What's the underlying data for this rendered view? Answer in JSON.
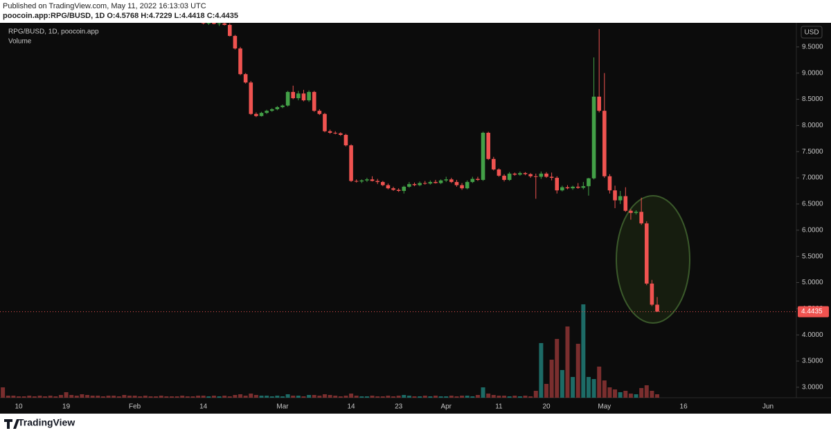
{
  "header": {
    "published": "Published on TradingView.com, May 11, 2022 16:13:03 UTC",
    "symbol": "poocoin.app:RPG/BUSD, 1D",
    "ohlc_labels": [
      "O:",
      "H:",
      "L:",
      "C:"
    ]
  },
  "footer": {
    "logo": "TradingView"
  },
  "chart_data": {
    "type": "candlestick",
    "symbol_label": "RPG/BUSD, 1D, poocoin.app",
    "volume_label": "Volume",
    "currency": "USD",
    "x": [
      "Jan 7",
      "Jan 8",
      "Jan 9",
      "Jan 10",
      "Jan 11",
      "Jan 12",
      "Jan 13",
      "Jan 14",
      "Jan 15",
      "Jan 16",
      "Jan 17",
      "Jan 18",
      "Jan 19",
      "Jan 20",
      "Jan 21",
      "Jan 22",
      "Jan 23",
      "Jan 24",
      "Jan 25",
      "Jan 26",
      "Jan 27",
      "Jan 28",
      "Jan 29",
      "Jan 30",
      "Jan 31",
      "Feb 1",
      "Feb 2",
      "Feb 3",
      "Feb 4",
      "Feb 5",
      "Feb 6",
      "Feb 7",
      "Feb 8",
      "Feb 9",
      "Feb 10",
      "Feb 11",
      "Feb 12",
      "Feb 13",
      "Feb 14",
      "Feb 15",
      "Feb 16",
      "Feb 17",
      "Feb 18",
      "Feb 19",
      "Feb 20",
      "Feb 21",
      "Feb 22",
      "Feb 23",
      "Feb 24",
      "Feb 25",
      "Feb 26",
      "Feb 27",
      "Feb 28",
      "Mar 1",
      "Mar 2",
      "Mar 3",
      "Mar 4",
      "Mar 5",
      "Mar 6",
      "Mar 7",
      "Mar 8",
      "Mar 9",
      "Mar 10",
      "Mar 11",
      "Mar 12",
      "Mar 13",
      "Mar 14",
      "Mar 15",
      "Mar 16",
      "Mar 17",
      "Mar 18",
      "Mar 19",
      "Mar 20",
      "Mar 21",
      "Mar 22",
      "Mar 23",
      "Mar 24",
      "Mar 25",
      "Mar 26",
      "Mar 27",
      "Mar 28",
      "Mar 29",
      "Mar 30",
      "Mar 31",
      "Apr 1",
      "Apr 2",
      "Apr 3",
      "Apr 4",
      "Apr 5",
      "Apr 6",
      "Apr 7",
      "Apr 8",
      "Apr 9",
      "Apr 10",
      "Apr 11",
      "Apr 12",
      "Apr 13",
      "Apr 14",
      "Apr 15",
      "Apr 16",
      "Apr 17",
      "Apr 18",
      "Apr 19",
      "Apr 20",
      "Apr 21",
      "Apr 22",
      "Apr 23",
      "Apr 24",
      "Apr 25",
      "Apr 26",
      "Apr 27",
      "Apr 28",
      "Apr 29",
      "Apr 30",
      "May 1",
      "May 2",
      "May 3",
      "May 4",
      "May 5",
      "May 6",
      "May 7",
      "May 8",
      "May 9",
      "May 10",
      "May 11"
    ],
    "open": [
      null,
      null,
      null,
      null,
      null,
      null,
      null,
      null,
      null,
      null,
      null,
      null,
      null,
      null,
      null,
      null,
      null,
      null,
      null,
      null,
      null,
      null,
      null,
      null,
      null,
      null,
      null,
      null,
      null,
      null,
      null,
      null,
      null,
      null,
      null,
      null,
      null,
      null,
      9.97,
      9.95,
      9.96,
      9.94,
      9.95,
      9.92,
      9.71,
      9.47,
      8.98,
      8.82,
      8.22,
      8.18,
      8.24,
      8.28,
      8.31,
      8.35,
      8.38,
      8.64,
      8.52,
      8.61,
      8.48,
      8.64,
      8.28,
      8.22,
      7.89,
      7.86,
      7.85,
      7.82,
      7.62,
      6.94,
      6.93,
      6.95,
      6.97,
      6.94,
      6.92,
      6.86,
      6.8,
      6.77,
      6.75,
      6.83,
      6.88,
      6.86,
      6.9,
      6.89,
      6.92,
      6.9,
      6.95,
      6.97,
      6.92,
      6.86,
      6.8,
      6.92,
      6.98,
      6.96,
      7.86,
      7.36,
      7.16,
      7.04,
      6.96,
      7.08,
      7.06,
      7.09,
      7.07,
      7.03,
      7.02,
      7.08,
      7.02,
      7.0,
      6.76,
      6.82,
      6.8,
      6.83,
      6.81,
      6.84,
      6.99,
      8.55,
      8.28,
      7.03,
      6.76,
      6.57,
      6.65,
      6.37,
      6.33,
      6.35,
      6.13,
      4.98,
      4.5768
    ],
    "high": [
      null,
      null,
      null,
      null,
      null,
      null,
      null,
      null,
      null,
      null,
      null,
      null,
      null,
      null,
      null,
      null,
      null,
      null,
      null,
      null,
      null,
      null,
      null,
      null,
      null,
      null,
      null,
      null,
      null,
      null,
      null,
      null,
      null,
      null,
      null,
      null,
      null,
      null,
      9.99,
      9.98,
      9.99,
      9.98,
      9.97,
      9.95,
      9.73,
      9.5,
      9.0,
      8.85,
      8.25,
      8.26,
      8.3,
      8.33,
      8.37,
      8.4,
      8.66,
      8.76,
      8.66,
      8.68,
      8.67,
      8.66,
      8.31,
      8.24,
      7.92,
      7.89,
      7.87,
      7.84,
      7.64,
      6.97,
      6.97,
      7.0,
      7.03,
      6.98,
      6.94,
      6.89,
      6.83,
      6.8,
      6.85,
      6.92,
      6.91,
      6.93,
      6.94,
      6.95,
      6.96,
      6.97,
      7.02,
      7.0,
      6.96,
      6.9,
      6.95,
      7.02,
      7.02,
      7.88,
      7.88,
      7.4,
      7.18,
      7.07,
      7.11,
      7.1,
      7.12,
      7.11,
      7.09,
      7.08,
      7.12,
      7.11,
      7.1,
      7.03,
      6.85,
      6.86,
      6.85,
      6.9,
      6.92,
      7.0,
      9.3,
      9.84,
      9.0,
      7.07,
      6.85,
      6.75,
      6.82,
      6.4,
      6.38,
      6.62,
      6.17,
      5.05,
      4.7229
    ],
    "low": [
      null,
      null,
      null,
      null,
      null,
      null,
      null,
      null,
      null,
      null,
      null,
      null,
      null,
      null,
      null,
      null,
      null,
      null,
      null,
      null,
      null,
      null,
      null,
      null,
      null,
      null,
      null,
      null,
      null,
      null,
      null,
      null,
      null,
      null,
      null,
      null,
      null,
      null,
      9.93,
      9.92,
      9.93,
      9.9,
      9.91,
      9.7,
      9.45,
      8.96,
      8.8,
      8.2,
      8.16,
      8.17,
      8.22,
      8.26,
      8.29,
      8.33,
      8.36,
      8.5,
      8.48,
      8.46,
      8.45,
      8.26,
      8.2,
      7.87,
      7.84,
      7.83,
      7.8,
      7.6,
      6.92,
      6.91,
      6.9,
      6.92,
      6.93,
      6.88,
      6.84,
      6.78,
      6.75,
      6.73,
      6.7,
      6.81,
      6.84,
      6.84,
      6.87,
      6.87,
      6.89,
      6.88,
      6.92,
      6.9,
      6.83,
      6.77,
      6.78,
      6.9,
      6.94,
      6.94,
      7.34,
      7.14,
      7.02,
      6.93,
      6.94,
      7.04,
      7.04,
      7.05,
      7.0,
      6.6,
      6.98,
      7.0,
      6.95,
      6.7,
      6.74,
      6.78,
      6.77,
      6.79,
      6.78,
      6.66,
      6.97,
      8.25,
      7.0,
      6.7,
      6.42,
      6.5,
      6.35,
      6.2,
      6.3,
      6.1,
      4.95,
      4.55,
      4.4418
    ],
    "close": [
      null,
      null,
      null,
      null,
      null,
      null,
      null,
      null,
      null,
      null,
      null,
      null,
      null,
      null,
      null,
      null,
      null,
      null,
      null,
      null,
      null,
      null,
      null,
      null,
      null,
      null,
      null,
      null,
      null,
      null,
      null,
      null,
      null,
      null,
      null,
      null,
      null,
      null,
      9.95,
      9.96,
      9.94,
      9.95,
      9.92,
      9.71,
      9.47,
      8.98,
      8.82,
      8.22,
      8.18,
      8.24,
      8.28,
      8.31,
      8.35,
      8.38,
      8.64,
      8.52,
      8.61,
      8.48,
      8.64,
      8.28,
      8.22,
      7.89,
      7.86,
      7.85,
      7.82,
      7.62,
      6.94,
      6.93,
      6.95,
      6.97,
      6.94,
      6.92,
      6.86,
      6.8,
      6.77,
      6.75,
      6.83,
      6.88,
      6.86,
      6.9,
      6.89,
      6.92,
      6.9,
      6.95,
      6.97,
      6.92,
      6.86,
      6.8,
      6.92,
      6.98,
      6.96,
      7.86,
      7.36,
      7.16,
      7.04,
      6.96,
      7.08,
      7.06,
      7.09,
      7.07,
      7.03,
      7.02,
      7.08,
      7.02,
      7.0,
      6.76,
      6.82,
      6.8,
      6.83,
      6.81,
      6.84,
      6.99,
      8.55,
      8.28,
      7.03,
      6.76,
      6.57,
      6.65,
      6.37,
      6.33,
      6.35,
      6.13,
      4.98,
      4.5768,
      4.4435
    ],
    "volume": [
      15,
      3,
      3,
      2,
      2,
      3,
      2,
      3,
      2,
      3,
      2,
      4,
      8,
      4,
      3,
      5,
      4,
      3,
      3,
      2,
      3,
      3,
      2,
      4,
      3,
      3,
      2,
      3,
      2,
      2,
      3,
      2,
      2,
      2,
      3,
      2,
      2,
      3,
      3,
      2,
      3,
      2,
      3,
      2,
      4,
      5,
      3,
      6,
      4,
      3,
      3,
      2,
      3,
      2,
      5,
      3,
      3,
      2,
      4,
      4,
      3,
      5,
      4,
      3,
      2,
      3,
      6,
      3,
      2,
      2,
      3,
      2,
      2,
      3,
      2,
      3,
      4,
      3,
      2,
      2,
      3,
      2,
      3,
      2,
      2,
      3,
      2,
      3,
      3,
      2,
      4,
      15,
      6,
      4,
      3,
      3,
      2,
      3,
      2,
      3,
      2,
      10,
      79,
      20,
      55,
      85,
      40,
      103,
      30,
      78,
      135,
      30,
      27,
      45,
      25,
      15,
      12,
      8,
      10,
      6,
      5,
      14,
      18,
      10,
      5
    ],
    "up_color": "#43a047",
    "down_color": "#ef5350",
    "volume_up_color": "#1d6b66",
    "volume_down_color": "#7a2e2e",
    "ylim": [
      2.8,
      9.96
    ],
    "yticks": [
      {
        "value": 3,
        "label": "3.0000"
      },
      {
        "value": 3.5,
        "label": "3.5000"
      },
      {
        "value": 4,
        "label": "4.0000"
      },
      {
        "value": 4.5,
        "label": "4.5000"
      },
      {
        "value": 5,
        "label": "5.0000"
      },
      {
        "value": 5.5,
        "label": "5.5000"
      },
      {
        "value": 6,
        "label": "6.0000"
      },
      {
        "value": 6.5,
        "label": "6.5000"
      },
      {
        "value": 7,
        "label": "7.0000"
      },
      {
        "value": 7.5,
        "label": "7.5000"
      },
      {
        "value": 8,
        "label": "8.0000"
      },
      {
        "value": 8.5,
        "label": "8.5000"
      },
      {
        "value": 9,
        "label": "9.0000"
      },
      {
        "value": 9.5,
        "label": "9.5000"
      }
    ],
    "xticks": [
      {
        "value": "Jan 10",
        "label": "10"
      },
      {
        "value": "Jan 19",
        "label": "19"
      },
      {
        "value": "Feb 1",
        "label": "Feb"
      },
      {
        "value": "Feb 14",
        "label": "14"
      },
      {
        "value": "Mar 1",
        "label": "Mar"
      },
      {
        "value": "Mar 14",
        "label": "14"
      },
      {
        "value": "Mar 23",
        "label": "23"
      },
      {
        "value": "Apr 1",
        "label": "Apr"
      },
      {
        "value": "Apr 11",
        "label": "11"
      },
      {
        "value": "Apr 20",
        "label": "20"
      },
      {
        "value": "May 1",
        "label": "May"
      },
      {
        "value": "May 16",
        "label": "16"
      },
      {
        "value": "Jun 1",
        "label": "Jun"
      }
    ],
    "grid": false
  }
}
